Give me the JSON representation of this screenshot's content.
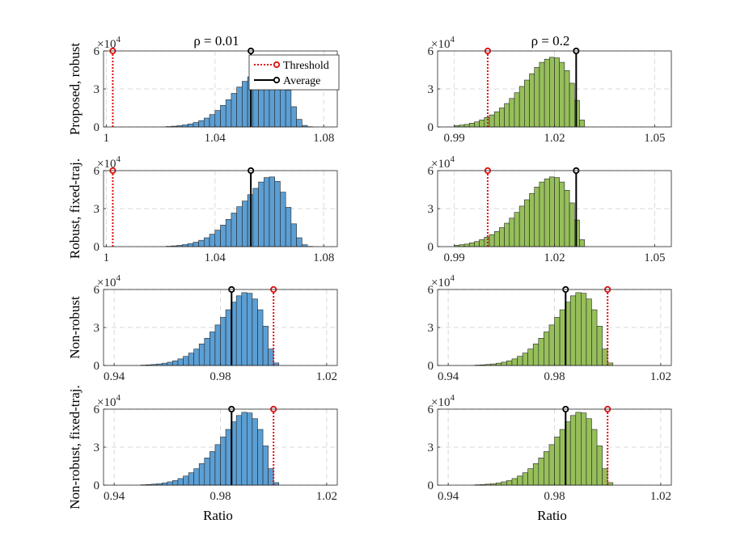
{
  "colors": {
    "left_bars": "#5b9fd4",
    "right_bars": "#96bf5a",
    "bar_edge": "#262626",
    "threshold": "#e01010",
    "average": "#000000",
    "grid": "#d9d9d9"
  },
  "legend": {
    "threshold": "Threshold",
    "average": "Average"
  },
  "exponent": {
    "base": "×10",
    "power": "4"
  },
  "chart_data": [
    {
      "type": "bar",
      "column": "left",
      "row": 0,
      "title": "ρ = 0.01",
      "ylabel": "Proposed, robust",
      "xlabel": "",
      "xlim": [
        0.999,
        1.085
      ],
      "ylim": [
        0,
        60000
      ],
      "xticks": [
        1,
        1.04,
        1.08
      ],
      "xticklabels": [
        "1",
        "1.04",
        "1.08"
      ],
      "yticks": [
        0,
        30000,
        60000
      ],
      "yticklabels": [
        "0",
        "3",
        "6"
      ],
      "bin_start": 1.0,
      "bin_width": 0.002,
      "values": [
        0,
        0,
        0,
        0,
        0,
        0,
        0,
        0,
        0,
        0,
        0,
        300,
        600,
        1000,
        1600,
        2400,
        3500,
        5000,
        7000,
        9800,
        13000,
        17000,
        21500,
        26500,
        31500,
        36000,
        39500,
        42500,
        44500,
        45500,
        45500,
        43500,
        38000,
        29000,
        16000,
        6000,
        1200,
        200
      ],
      "threshold": 1.0024,
      "average": 1.0532,
      "marker_y": 60000,
      "grid": true,
      "legend": "top-right"
    },
    {
      "type": "bar",
      "column": "right",
      "row": 0,
      "title": "ρ = 0.2",
      "ylabel": "",
      "xlabel": "",
      "xlim": [
        0.985,
        1.055
      ],
      "ylim": [
        0,
        60000
      ],
      "xticks": [
        0.99,
        1.02,
        1.05
      ],
      "xticklabels": [
        "0.99",
        "1.02",
        "1.05"
      ],
      "yticks": [
        0,
        30000,
        60000
      ],
      "yticklabels": [
        "0",
        "3",
        "6"
      ],
      "bin_start": 0.99,
      "bin_width": 0.0015,
      "values": [
        1000,
        1500,
        2000,
        3000,
        4000,
        5500,
        7500,
        9500,
        12000,
        15000,
        18500,
        22500,
        27000,
        32000,
        37000,
        42000,
        47000,
        51000,
        53500,
        55000,
        54500,
        51000,
        44500,
        34500,
        21000,
        5500,
        0
      ],
      "threshold": 1.0,
      "average": 1.0265,
      "marker_y": 60000,
      "grid": true
    },
    {
      "type": "bar",
      "column": "left",
      "row": 1,
      "ylabel": "Robust, fixed-traj.",
      "xlabel": "",
      "xlim": [
        0.999,
        1.085
      ],
      "ylim": [
        0,
        60000
      ],
      "xticks": [
        1,
        1.04,
        1.08
      ],
      "xticklabels": [
        "1",
        "1.04",
        "1.08"
      ],
      "yticks": [
        0,
        30000,
        60000
      ],
      "yticklabels": [
        "0",
        "3",
        "6"
      ],
      "bin_start": 1.0,
      "bin_width": 0.002,
      "values": [
        0,
        0,
        0,
        0,
        0,
        0,
        0,
        0,
        0,
        0,
        0,
        300,
        600,
        1000,
        1600,
        2400,
        3500,
        5000,
        7000,
        9800,
        13000,
        17000,
        21500,
        26500,
        31500,
        36000,
        41000,
        46000,
        51000,
        54500,
        55000,
        51500,
        43000,
        31000,
        18000,
        7000,
        1500,
        200
      ],
      "threshold": 1.0024,
      "average": 1.0532,
      "marker_y": 60000,
      "grid": true
    },
    {
      "type": "bar",
      "column": "right",
      "row": 1,
      "ylabel": "",
      "xlabel": "",
      "xlim": [
        0.985,
        1.055
      ],
      "ylim": [
        0,
        60000
      ],
      "xticks": [
        0.99,
        1.02,
        1.05
      ],
      "xticklabels": [
        "0.99",
        "1.02",
        "1.05"
      ],
      "yticks": [
        0,
        30000,
        60000
      ],
      "yticklabels": [
        "0",
        "3",
        "6"
      ],
      "bin_start": 0.99,
      "bin_width": 0.0015,
      "values": [
        1000,
        1500,
        2000,
        3000,
        4000,
        5500,
        7500,
        9500,
        12000,
        15000,
        18500,
        22500,
        27000,
        32000,
        37000,
        42000,
        47000,
        51000,
        53500,
        55000,
        54500,
        51000,
        44500,
        34500,
        21000,
        5500,
        0
      ],
      "threshold": 1.0,
      "average": 1.0265,
      "marker_y": 60000,
      "grid": true
    },
    {
      "type": "bar",
      "column": "left",
      "row": 2,
      "ylabel": "Non-robust",
      "xlabel": "",
      "xlim": [
        0.936,
        1.024
      ],
      "ylim": [
        0,
        60000
      ],
      "xticks": [
        0.94,
        0.98,
        1.02
      ],
      "xticklabels": [
        "0.94",
        "0.98",
        "1.02"
      ],
      "yticks": [
        0,
        30000,
        60000
      ],
      "yticklabels": [
        "0",
        "3",
        "6"
      ],
      "bin_start": 0.95,
      "bin_width": 0.002,
      "values": [
        300,
        500,
        800,
        1200,
        1800,
        2600,
        3700,
        5200,
        7200,
        9800,
        13000,
        17000,
        21500,
        26500,
        32000,
        38000,
        44000,
        50000,
        55000,
        57500,
        57000,
        52500,
        44000,
        31000,
        13000,
        2000
      ],
      "threshold": 1.0,
      "average": 0.9842,
      "marker_y": 60000,
      "grid": true
    },
    {
      "type": "bar",
      "column": "right",
      "row": 2,
      "ylabel": "",
      "xlabel": "",
      "xlim": [
        0.936,
        1.024
      ],
      "ylim": [
        0,
        60000
      ],
      "xticks": [
        0.94,
        0.98,
        1.02
      ],
      "xticklabels": [
        "0.94",
        "0.98",
        "1.02"
      ],
      "yticks": [
        0,
        30000,
        60000
      ],
      "yticklabels": [
        "0",
        "3",
        "6"
      ],
      "bin_start": 0.95,
      "bin_width": 0.002,
      "values": [
        300,
        500,
        800,
        1200,
        1800,
        2600,
        3700,
        5200,
        7200,
        9800,
        13000,
        17000,
        21500,
        26500,
        32000,
        38000,
        44000,
        50000,
        55000,
        57500,
        57000,
        52500,
        44000,
        31000,
        13000,
        2000
      ],
      "threshold": 1.0,
      "average": 0.9842,
      "marker_y": 60000,
      "grid": true
    },
    {
      "type": "bar",
      "column": "left",
      "row": 3,
      "ylabel": "Non-robust, fixed-traj.",
      "xlabel": "Ratio",
      "xlim": [
        0.936,
        1.024
      ],
      "ylim": [
        0,
        60000
      ],
      "xticks": [
        0.94,
        0.98,
        1.02
      ],
      "xticklabels": [
        "0.94",
        "0.98",
        "1.02"
      ],
      "yticks": [
        0,
        30000,
        60000
      ],
      "yticklabels": [
        "0",
        "3",
        "6"
      ],
      "bin_start": 0.95,
      "bin_width": 0.002,
      "values": [
        300,
        500,
        800,
        1200,
        1800,
        2600,
        3700,
        5200,
        7200,
        9800,
        13000,
        17000,
        21500,
        26500,
        32000,
        38000,
        44000,
        50000,
        55000,
        57500,
        57000,
        52500,
        44000,
        31000,
        13000,
        2000
      ],
      "threshold": 1.0,
      "average": 0.9842,
      "marker_y": 60000,
      "grid": true
    },
    {
      "type": "bar",
      "column": "right",
      "row": 3,
      "ylabel": "",
      "xlabel": "Ratio",
      "xlim": [
        0.936,
        1.024
      ],
      "ylim": [
        0,
        60000
      ],
      "xticks": [
        0.94,
        0.98,
        1.02
      ],
      "xticklabels": [
        "0.94",
        "0.98",
        "1.02"
      ],
      "yticks": [
        0,
        30000,
        60000
      ],
      "yticklabels": [
        "0",
        "3",
        "6"
      ],
      "bin_start": 0.95,
      "bin_width": 0.002,
      "values": [
        300,
        500,
        800,
        1200,
        1800,
        2600,
        3700,
        5200,
        7200,
        9800,
        13000,
        17000,
        21500,
        26500,
        32000,
        38000,
        44000,
        50000,
        55000,
        57500,
        57000,
        52500,
        44000,
        31000,
        13000,
        2000
      ],
      "threshold": 1.0,
      "average": 0.9842,
      "marker_y": 60000,
      "grid": true
    }
  ]
}
